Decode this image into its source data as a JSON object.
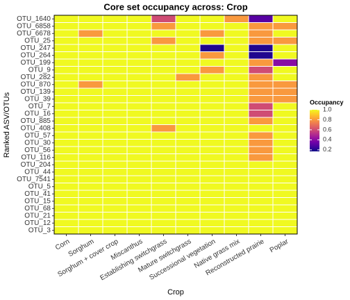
{
  "chart_data": {
    "type": "heatmap",
    "title": "Core set occupancy across: Crop",
    "x_label": "Crop",
    "y_label": "Ranked ASV/OTUs",
    "categories": [
      "Corn",
      "Sorghum",
      "Sorghum + cover crop",
      "Miscanthus",
      "Establishing switchgrass",
      "Mature switchgrass",
      "Successional vegetation",
      "Native grass mix",
      "Reconstructed prairie",
      "Poplar"
    ],
    "y_categories": [
      "OTU_1640",
      "OTU_6858",
      "OTU_6678",
      "OTU_25",
      "OTU_247",
      "OTU_264",
      "OTU_199",
      "OTU_9",
      "OTU_282",
      "OTU_870",
      "OTU_139",
      "OTU_39",
      "OTU_7",
      "OTU_16",
      "OTU_885",
      "OTU_408",
      "OTU_57",
      "OTU_30",
      "OTU_56",
      "OTU_116",
      "OTU_204",
      "OTU_44",
      "OTU_7541",
      "OTU_5",
      "OTU_41",
      "OTU_15",
      "OTU_68",
      "OTU_21",
      "OTU_12",
      "OTU_3"
    ],
    "values": [
      [
        1,
        1,
        1,
        1,
        0.6,
        1,
        1,
        0.8,
        0.3,
        1
      ],
      [
        1,
        1,
        1,
        1,
        0.8,
        1,
        1,
        1,
        0.8,
        0.8
      ],
      [
        1,
        0.8,
        1,
        1,
        1,
        1,
        0.8,
        1,
        0.8,
        1
      ],
      [
        1,
        1,
        1,
        1,
        0.8,
        1,
        1,
        1,
        0.8,
        0.8
      ],
      [
        1,
        1,
        1,
        1,
        1,
        1,
        0.2,
        1,
        0.2,
        1
      ],
      [
        1,
        1,
        1,
        1,
        1,
        1,
        0.8,
        1,
        0.2,
        1
      ],
      [
        1,
        1,
        1,
        1,
        1,
        1,
        1,
        1,
        0.8,
        0.4
      ],
      [
        1,
        1,
        1,
        1,
        1,
        1,
        0.8,
        1,
        0.6,
        1
      ],
      [
        1,
        1,
        1,
        1,
        1,
        0.8,
        1,
        1,
        0.8,
        1
      ],
      [
        1,
        0.8,
        1,
        1,
        1,
        1,
        1,
        1,
        0.8,
        0.8
      ],
      [
        1,
        1,
        1,
        1,
        1,
        1,
        1,
        1,
        0.8,
        0.8
      ],
      [
        1,
        1,
        1,
        1,
        1,
        1,
        1,
        1,
        0.8,
        0.8
      ],
      [
        1,
        1,
        1,
        1,
        1,
        1,
        1,
        1,
        0.6,
        1
      ],
      [
        1,
        1,
        1,
        1,
        1,
        1,
        1,
        1,
        0.6,
        1
      ],
      [
        1,
        1,
        1,
        1,
        1,
        1,
        1,
        1,
        0.8,
        1
      ],
      [
        1,
        1,
        1,
        1,
        0.8,
        1,
        1,
        1,
        1,
        1
      ],
      [
        1,
        1,
        1,
        1,
        1,
        1,
        1,
        1,
        0.8,
        1
      ],
      [
        1,
        1,
        1,
        1,
        1,
        1,
        1,
        1,
        0.8,
        1
      ],
      [
        1,
        1,
        1,
        1,
        1,
        1,
        1,
        1,
        0.8,
        1
      ],
      [
        1,
        1,
        1,
        1,
        1,
        1,
        1,
        1,
        0.8,
        1
      ],
      [
        1,
        1,
        1,
        1,
        1,
        1,
        1,
        1,
        1,
        1
      ],
      [
        1,
        1,
        1,
        1,
        1,
        1,
        1,
        1,
        1,
        1
      ],
      [
        1,
        1,
        1,
        1,
        1,
        1,
        1,
        1,
        1,
        1
      ],
      [
        1,
        1,
        1,
        1,
        1,
        1,
        1,
        1,
        1,
        1
      ],
      [
        1,
        1,
        1,
        1,
        1,
        1,
        1,
        1,
        1,
        1
      ],
      [
        1,
        1,
        1,
        1,
        1,
        1,
        1,
        1,
        1,
        1
      ],
      [
        1,
        1,
        1,
        1,
        1,
        1,
        1,
        1,
        1,
        1
      ],
      [
        1,
        1,
        1,
        1,
        1,
        1,
        1,
        1,
        1,
        1
      ],
      [
        1,
        1,
        1,
        1,
        1,
        1,
        1,
        1,
        1,
        1
      ],
      [
        1,
        1,
        1,
        1,
        1,
        1,
        1,
        1,
        1,
        1
      ]
    ],
    "colormap": "plasma",
    "legend_title": "Occupancy",
    "zlim": [
      0.17,
      1
    ],
    "zticks": [
      0.2,
      0.4,
      0.6,
      0.8,
      {
        "value": 1,
        "label": "1.0"
      }
    ]
  }
}
